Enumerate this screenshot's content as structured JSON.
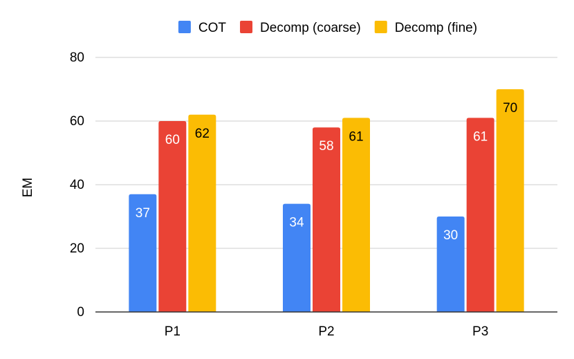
{
  "chart_data": {
    "type": "bar",
    "title": "",
    "xlabel": "",
    "ylabel": "EM",
    "categories": [
      "P1",
      "P2",
      "P3"
    ],
    "ylim": [
      0,
      80
    ],
    "yticks": [
      0,
      20,
      40,
      60,
      80
    ],
    "grid": true,
    "legend_position": "top-center",
    "series": [
      {
        "name": "COT",
        "color": "#4285f4",
        "label_color": "#ffffff",
        "values": [
          37,
          34,
          30
        ],
        "labels": [
          "37",
          "34",
          "30"
        ]
      },
      {
        "name": "Decomp (coarse)",
        "color": "#ea4335",
        "label_color": "#ffffff",
        "values": [
          60,
          58,
          61
        ],
        "labels": [
          "60",
          "58",
          "61"
        ]
      },
      {
        "name": "Decomp (fine)",
        "color": "#fbbc04",
        "label_color": "#000000",
        "values": [
          62,
          61,
          70
        ],
        "labels": [
          "62",
          "61",
          "70"
        ]
      }
    ]
  }
}
